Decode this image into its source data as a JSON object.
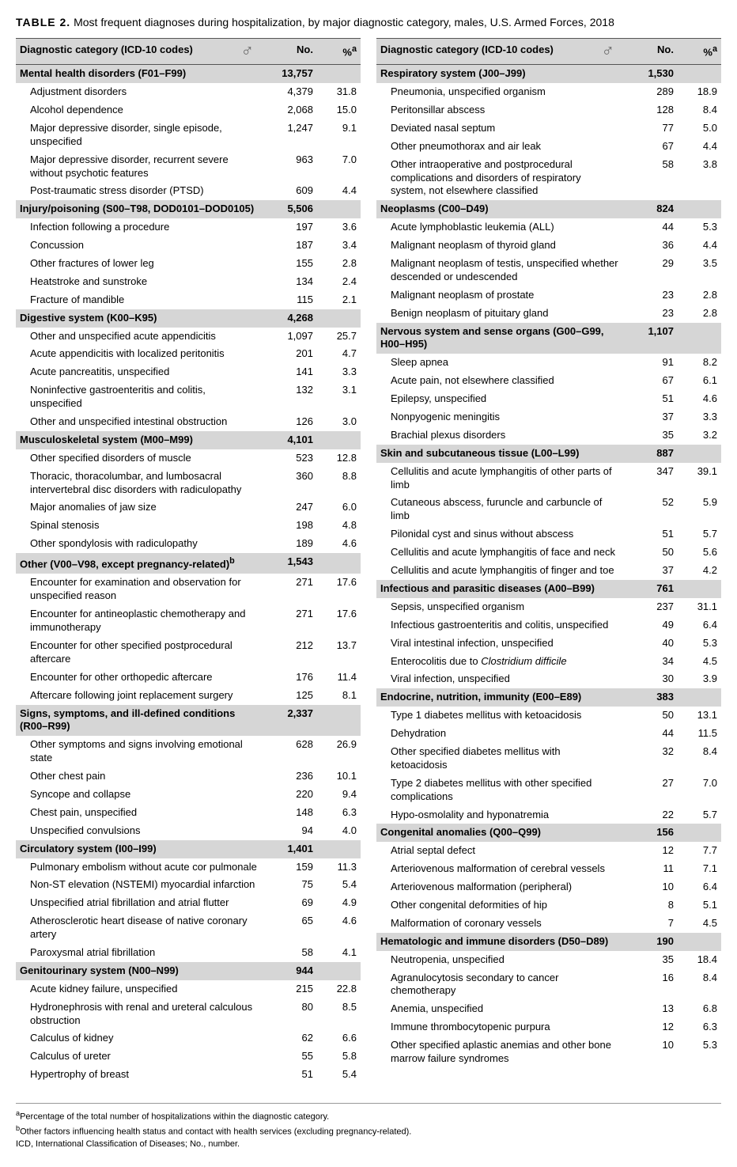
{
  "title_prefix": "TABLE 2.",
  "title_text": "Most frequent diagnoses during hospitalization, by major diagnostic category, males, U.S. Armed Forces, 2018",
  "header": {
    "category": "Diagnostic category (ICD-10 codes)",
    "no": "No.",
    "pct": "%",
    "pct_sup": "a",
    "symbol": "♂"
  },
  "left": [
    {
      "type": "cat",
      "name": "Mental health disorders (F01–F99)",
      "no": "13,757",
      "pct": ""
    },
    {
      "type": "sub",
      "name": "Adjustment disorders",
      "no": "4,379",
      "pct": "31.8"
    },
    {
      "type": "sub",
      "name": "Alcohol dependence",
      "no": "2,068",
      "pct": "15.0"
    },
    {
      "type": "sub",
      "name": "Major depressive disorder, single episode, unspecified",
      "no": "1,247",
      "pct": "9.1"
    },
    {
      "type": "sub",
      "name": "Major depressive disorder, recurrent severe without psychotic features",
      "no": "963",
      "pct": "7.0"
    },
    {
      "type": "sub",
      "name": "Post-traumatic stress disorder (PTSD)",
      "no": "609",
      "pct": "4.4"
    },
    {
      "type": "cat",
      "name": "Injury/poisoning (S00–T98, DOD0101–DOD0105)",
      "no": "5,506",
      "pct": ""
    },
    {
      "type": "sub",
      "name": "Infection following a procedure",
      "no": "197",
      "pct": "3.6"
    },
    {
      "type": "sub",
      "name": "Concussion",
      "no": "187",
      "pct": "3.4"
    },
    {
      "type": "sub",
      "name": "Other fractures of lower leg",
      "no": "155",
      "pct": "2.8"
    },
    {
      "type": "sub",
      "name": "Heatstroke and sunstroke",
      "no": "134",
      "pct": "2.4"
    },
    {
      "type": "sub",
      "name": "Fracture of mandible",
      "no": "115",
      "pct": "2.1"
    },
    {
      "type": "cat",
      "name": "Digestive system (K00–K95)",
      "no": "4,268",
      "pct": ""
    },
    {
      "type": "sub",
      "name": "Other and unspecified acute appendicitis",
      "no": "1,097",
      "pct": "25.7"
    },
    {
      "type": "sub",
      "name": "Acute appendicitis with localized peritonitis",
      "no": "201",
      "pct": "4.7"
    },
    {
      "type": "sub",
      "name": "Acute pancreatitis, unspecified",
      "no": "141",
      "pct": "3.3"
    },
    {
      "type": "sub",
      "name": "Noninfective gastroenteritis and colitis, unspecified",
      "no": "132",
      "pct": "3.1"
    },
    {
      "type": "sub",
      "name": "Other and unspecified intestinal obstruction",
      "no": "126",
      "pct": "3.0"
    },
    {
      "type": "cat",
      "name": "Musculoskeletal system (M00–M99)",
      "no": "4,101",
      "pct": ""
    },
    {
      "type": "sub",
      "name": "Other specified disorders of muscle",
      "no": "523",
      "pct": "12.8"
    },
    {
      "type": "sub",
      "name": "Thoracic, thoracolumbar, and lumbosacral intervertebral disc disorders with radiculopathy",
      "no": "360",
      "pct": "8.8"
    },
    {
      "type": "sub",
      "name": "Major anomalies of jaw size",
      "no": "247",
      "pct": "6.0"
    },
    {
      "type": "sub",
      "name": "Spinal stenosis",
      "no": "198",
      "pct": "4.8"
    },
    {
      "type": "sub",
      "name": "Other spondylosis with radiculopathy",
      "no": "189",
      "pct": "4.6"
    },
    {
      "type": "cat",
      "name": "Other (V00–V98, except pregnancy-related)",
      "sup": "b",
      "no": "1,543",
      "pct": ""
    },
    {
      "type": "sub",
      "name": "Encounter for examination and observation for unspecified reason",
      "no": "271",
      "pct": "17.6"
    },
    {
      "type": "sub",
      "name": "Encounter for antineoplastic chemotherapy and immunotherapy",
      "no": "271",
      "pct": "17.6"
    },
    {
      "type": "sub",
      "name": "Encounter for other specified postprocedural aftercare",
      "no": "212",
      "pct": "13.7"
    },
    {
      "type": "sub",
      "name": "Encounter for other orthopedic aftercare",
      "no": "176",
      "pct": "11.4"
    },
    {
      "type": "sub",
      "name": "Aftercare following joint replacement surgery",
      "no": "125",
      "pct": "8.1"
    },
    {
      "type": "cat",
      "name": "Signs, symptoms, and ill-defined conditions (R00–R99)",
      "no": "2,337",
      "pct": ""
    },
    {
      "type": "sub",
      "name": "Other symptoms and signs involving emotional state",
      "no": "628",
      "pct": "26.9"
    },
    {
      "type": "sub",
      "name": "Other chest pain",
      "no": "236",
      "pct": "10.1"
    },
    {
      "type": "sub",
      "name": "Syncope and collapse",
      "no": "220",
      "pct": "9.4"
    },
    {
      "type": "sub",
      "name": "Chest pain, unspecified",
      "no": "148",
      "pct": "6.3"
    },
    {
      "type": "sub",
      "name": "Unspecified convulsions",
      "no": "94",
      "pct": "4.0"
    },
    {
      "type": "cat",
      "name": "Circulatory system (I00–I99)",
      "no": "1,401",
      "pct": ""
    },
    {
      "type": "sub",
      "name": "Pulmonary embolism without acute cor pulmonale",
      "no": "159",
      "pct": "11.3"
    },
    {
      "type": "sub",
      "name": "Non-ST elevation (NSTEMI) myocardial infarction",
      "no": "75",
      "pct": "5.4"
    },
    {
      "type": "sub",
      "name": "Unspecified atrial fibrillation and atrial flutter",
      "no": "69",
      "pct": "4.9"
    },
    {
      "type": "sub",
      "name": "Atherosclerotic heart disease of native coronary artery",
      "no": "65",
      "pct": "4.6"
    },
    {
      "type": "sub",
      "name": "Paroxysmal atrial fibrillation",
      "no": "58",
      "pct": "4.1"
    },
    {
      "type": "cat",
      "name": "Genitourinary system (N00–N99)",
      "no": "944",
      "pct": ""
    },
    {
      "type": "sub",
      "name": "Acute kidney failure, unspecified",
      "no": "215",
      "pct": "22.8"
    },
    {
      "type": "sub",
      "name": "Hydronephrosis with renal and ureteral calculous obstruction",
      "no": "80",
      "pct": "8.5"
    },
    {
      "type": "sub",
      "name": "Calculus of kidney",
      "no": "62",
      "pct": "6.6"
    },
    {
      "type": "sub",
      "name": "Calculus of ureter",
      "no": "55",
      "pct": "5.8"
    },
    {
      "type": "sub",
      "name": "Hypertrophy of breast",
      "no": "51",
      "pct": "5.4"
    }
  ],
  "right": [
    {
      "type": "cat",
      "name": "Respiratory system (J00–J99)",
      "no": "1,530",
      "pct": ""
    },
    {
      "type": "sub",
      "name": "Pneumonia, unspecified organism",
      "no": "289",
      "pct": "18.9"
    },
    {
      "type": "sub",
      "name": "Peritonsillar abscess",
      "no": "128",
      "pct": "8.4"
    },
    {
      "type": "sub",
      "name": "Deviated nasal septum",
      "no": "77",
      "pct": "5.0"
    },
    {
      "type": "sub",
      "name": "Other pneumothorax and air leak",
      "no": "67",
      "pct": "4.4"
    },
    {
      "type": "sub",
      "name": "Other intraoperative and postprocedural complications and disorders of respiratory system, not elsewhere classified",
      "no": "58",
      "pct": "3.8"
    },
    {
      "type": "cat",
      "name": "Neoplasms (C00–D49)",
      "no": "824",
      "pct": ""
    },
    {
      "type": "sub",
      "name": "Acute lymphoblastic leukemia (ALL)",
      "no": "44",
      "pct": "5.3"
    },
    {
      "type": "sub",
      "name": "Malignant neoplasm of thyroid gland",
      "no": "36",
      "pct": "4.4"
    },
    {
      "type": "sub",
      "name": "Malignant neoplasm of testis, unspecified whether descended or undescended",
      "no": "29",
      "pct": "3.5"
    },
    {
      "type": "sub",
      "name": "Malignant neoplasm of prostate",
      "no": "23",
      "pct": "2.8"
    },
    {
      "type": "sub",
      "name": "Benign neoplasm of pituitary gland",
      "no": "23",
      "pct": "2.8"
    },
    {
      "type": "cat",
      "name": "Nervous system and sense organs (G00–G99, H00–H95)",
      "no": "1,107",
      "pct": ""
    },
    {
      "type": "sub",
      "name": "Sleep apnea",
      "no": "91",
      "pct": "8.2"
    },
    {
      "type": "sub",
      "name": "Acute pain, not elsewhere classified",
      "no": "67",
      "pct": "6.1"
    },
    {
      "type": "sub",
      "name": "Epilepsy, unspecified",
      "no": "51",
      "pct": "4.6"
    },
    {
      "type": "sub",
      "name": "Nonpyogenic meningitis",
      "no": "37",
      "pct": "3.3"
    },
    {
      "type": "sub",
      "name": "Brachial plexus disorders",
      "no": "35",
      "pct": "3.2"
    },
    {
      "type": "cat",
      "name": "Skin and subcutaneous tissue (L00–L99)",
      "no": "887",
      "pct": ""
    },
    {
      "type": "sub",
      "name": "Cellulitis and acute lymphangitis of other parts of limb",
      "no": "347",
      "pct": "39.1"
    },
    {
      "type": "sub",
      "name": "Cutaneous abscess, furuncle and carbuncle of limb",
      "no": "52",
      "pct": "5.9"
    },
    {
      "type": "sub",
      "name": "Pilonidal cyst and sinus without abscess",
      "no": "51",
      "pct": "5.7"
    },
    {
      "type": "sub",
      "name": "Cellulitis and acute lymphangitis of face and neck",
      "no": "50",
      "pct": "5.6"
    },
    {
      "type": "sub",
      "name": "Cellulitis and acute lymphangitis of finger and toe",
      "no": "37",
      "pct": "4.2"
    },
    {
      "type": "cat",
      "name": "Infectious and parasitic diseases (A00–B99)",
      "no": "761",
      "pct": ""
    },
    {
      "type": "sub",
      "name": "Sepsis, unspecified organism",
      "no": "237",
      "pct": "31.1"
    },
    {
      "type": "sub",
      "name": "Infectious gastroenteritis and colitis, unspecified",
      "no": "49",
      "pct": "6.4"
    },
    {
      "type": "sub",
      "name": "Viral intestinal infection, unspecified",
      "no": "40",
      "pct": "5.3"
    },
    {
      "type": "sub",
      "name": "Enterocolitis due to ",
      "italic": "Clostridium difficile",
      "no": "34",
      "pct": "4.5"
    },
    {
      "type": "sub",
      "name": "Viral infection, unspecified",
      "no": "30",
      "pct": "3.9"
    },
    {
      "type": "cat",
      "name": "Endocrine, nutrition, immunity (E00–E89)",
      "no": "383",
      "pct": ""
    },
    {
      "type": "sub",
      "name": "Type 1 diabetes mellitus with ketoacidosis",
      "no": "50",
      "pct": "13.1"
    },
    {
      "type": "sub",
      "name": "Dehydration",
      "no": "44",
      "pct": "11.5"
    },
    {
      "type": "sub",
      "name": "Other specified diabetes mellitus with ketoacidosis",
      "no": "32",
      "pct": "8.4"
    },
    {
      "type": "sub",
      "name": "Type 2 diabetes mellitus with other specified complications",
      "no": "27",
      "pct": "7.0"
    },
    {
      "type": "sub",
      "name": "Hypo-osmolality and hyponatremia",
      "no": "22",
      "pct": "5.7"
    },
    {
      "type": "cat",
      "name": "Congenital anomalies (Q00–Q99)",
      "no": "156",
      "pct": ""
    },
    {
      "type": "sub",
      "name": "Atrial septal defect",
      "no": "12",
      "pct": "7.7"
    },
    {
      "type": "sub",
      "name": "Arteriovenous malformation of cerebral vessels",
      "no": "11",
      "pct": "7.1"
    },
    {
      "type": "sub",
      "name": "Arteriovenous malformation (peripheral)",
      "no": "10",
      "pct": "6.4"
    },
    {
      "type": "sub",
      "name": "Other congenital deformities of hip",
      "no": "8",
      "pct": "5.1"
    },
    {
      "type": "sub",
      "name": "Malformation of coronary vessels",
      "no": "7",
      "pct": "4.5"
    },
    {
      "type": "cat",
      "name": "Hematologic and immune disorders (D50–D89)",
      "no": "190",
      "pct": ""
    },
    {
      "type": "sub",
      "name": "Neutropenia, unspecified",
      "no": "35",
      "pct": "18.4"
    },
    {
      "type": "sub",
      "name": "Agranulocytosis secondary to cancer chemotherapy",
      "no": "16",
      "pct": "8.4"
    },
    {
      "type": "sub",
      "name": "Anemia, unspecified",
      "no": "13",
      "pct": "6.8"
    },
    {
      "type": "sub",
      "name": "Immune thrombocytopenic purpura",
      "no": "12",
      "pct": "6.3"
    },
    {
      "type": "sub",
      "name": "Other specified aplastic anemias and other bone marrow failure syndromes",
      "no": "10",
      "pct": "5.3"
    }
  ],
  "footnotes": {
    "a": "Percentage of the total number of hospitalizations within the diagnostic category.",
    "b": "Other factors influencing health status and contact with health services (excluding pregnancy-related).",
    "legend": "ICD, International Classification of Diseases; No., number."
  }
}
